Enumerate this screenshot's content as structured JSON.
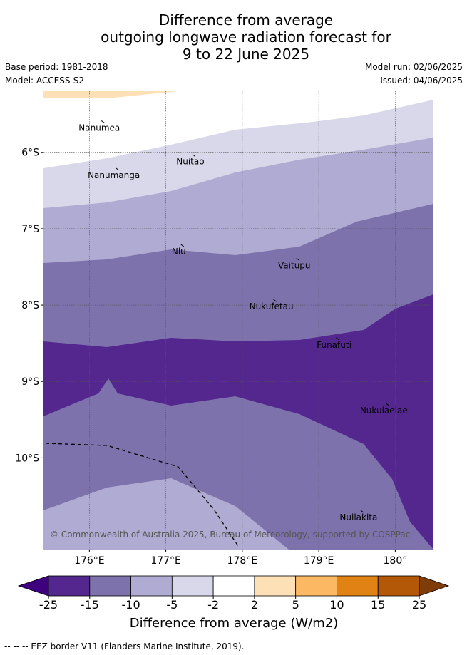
{
  "title": {
    "line1": "Difference from average",
    "line2": "outgoing longwave radiation forecast for",
    "line3": "9 to 22 June 2025"
  },
  "meta": {
    "base_period": "Base period: 1981-2018",
    "model": "Model: ACCESS-S2",
    "model_run": "Model run: 02/06/2025",
    "issued": "Issued: 04/06/2025"
  },
  "map": {
    "lon_range": [
      175.4,
      180.5
    ],
    "lat_range": [
      -11.2,
      -5.2
    ],
    "lon_ticks": [
      {
        "value": 176,
        "label": "176°E"
      },
      {
        "value": 177,
        "label": "177°E"
      },
      {
        "value": 178,
        "label": "178°E"
      },
      {
        "value": 179,
        "label": "179°E"
      },
      {
        "value": 180,
        "label": "180°"
      }
    ],
    "lat_ticks": [
      {
        "value": -6,
        "label": "6°S"
      },
      {
        "value": -7,
        "label": "7°S"
      },
      {
        "value": -8,
        "label": "8°S"
      },
      {
        "value": -9,
        "label": "9°S"
      },
      {
        "value": -10,
        "label": "10°S"
      }
    ],
    "places": [
      {
        "name": "Nanumea",
        "lon": 176.13,
        "lat": -5.68
      },
      {
        "name": "Nuitao",
        "lon": 177.32,
        "lat": -6.12
      },
      {
        "name": "Nanumanga",
        "lon": 176.32,
        "lat": -6.3
      },
      {
        "name": "Niu",
        "lon": 177.17,
        "lat": -7.3
      },
      {
        "name": "Vaitupu",
        "lon": 178.68,
        "lat": -7.48
      },
      {
        "name": "Nukufetau",
        "lon": 178.38,
        "lat": -8.02
      },
      {
        "name": "Funafuti",
        "lon": 179.2,
        "lat": -8.52
      },
      {
        "name": "Nukulaelae",
        "lon": 179.85,
        "lat": -9.38
      },
      {
        "name": "Nuilakita",
        "lon": 179.52,
        "lat": -10.78
      }
    ],
    "copyright": "© Commonwealth of Australia 2025, Bureau of Meteorology, supported by COSPPac"
  },
  "colorbar": {
    "ticks": [
      "-25",
      "-15",
      "-10",
      "-5",
      "-2",
      "2",
      "5",
      "10",
      "15",
      "25"
    ],
    "colors": [
      "#3f007d",
      "#54278f",
      "#7e72ac",
      "#b0abd2",
      "#d8d8ea",
      "#ffffff",
      "#fee0b6",
      "#fdb863",
      "#e08214",
      "#b35806",
      "#7f3b08"
    ],
    "label": "Difference from average (W/m2)"
  },
  "footnote": "--  --  -- EEZ border V11 (Flanders Marine Institute, 2019)."
}
